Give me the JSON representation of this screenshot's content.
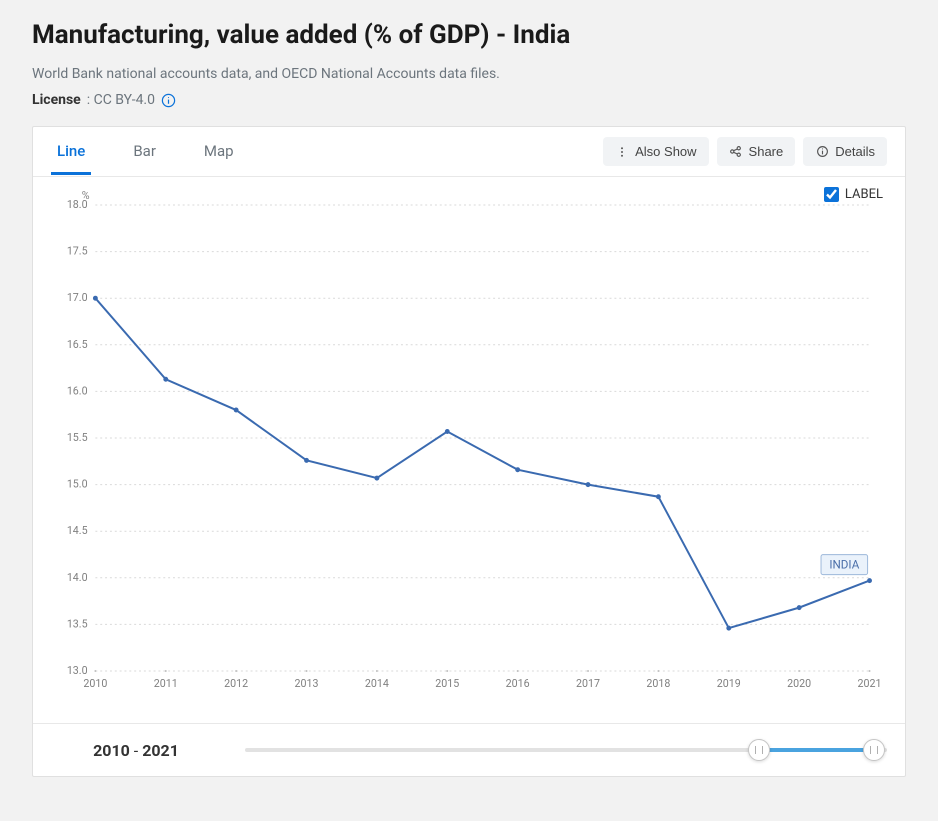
{
  "header": {
    "title": "Manufacturing, value added (% of GDP) - India",
    "subtitle": "World Bank national accounts data, and OECD National Accounts data files.",
    "license_label": "License",
    "license_value": ": CC BY-4.0"
  },
  "tabs": {
    "line": "Line",
    "bar": "Bar",
    "map": "Map",
    "active": "line"
  },
  "actions": {
    "also_show": "Also Show",
    "share": "Share",
    "details": "Details"
  },
  "legend": {
    "label_checkbox_text": "LABEL",
    "label_checked": true
  },
  "chart": {
    "type": "line",
    "unit": "%",
    "x_values": [
      2010,
      2011,
      2012,
      2013,
      2014,
      2015,
      2016,
      2017,
      2018,
      2019,
      2020,
      2021
    ],
    "y_values": [
      17.0,
      16.13,
      15.8,
      15.26,
      15.07,
      15.57,
      15.16,
      15.0,
      14.87,
      13.46,
      13.68,
      13.97
    ],
    "series_label": "INDIA",
    "ylim": [
      13.0,
      18.0
    ],
    "ytick_step": 0.5,
    "line_color": "#3a6ab0",
    "line_width": 2,
    "marker_radius": 2.5,
    "grid_color": "#d9d9d9",
    "grid_dash": "2 3",
    "axis_text_color": "#808080",
    "axis_fontsize": 11,
    "background_color": "#ffffff",
    "series_label_box_fill": "#eaf2fb",
    "series_label_box_stroke": "#9cb8da",
    "series_label_text_color": "#4a6ea8"
  },
  "time_range": {
    "start": "2010",
    "end": "2021",
    "slider_start_pct": 80,
    "slider_end_pct": 98
  }
}
